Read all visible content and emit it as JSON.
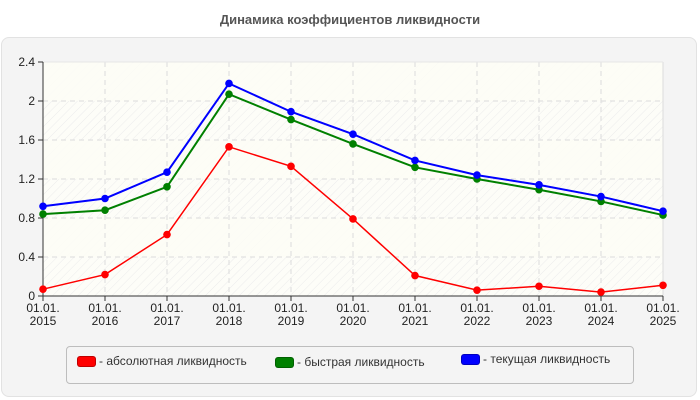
{
  "title": "Динамика коэффициентов ликвидности",
  "chart_data": {
    "type": "line",
    "title": "Динамика коэффициентов ликвидности",
    "xlabel": "",
    "ylabel": "",
    "x": [
      "01.01. 2015",
      "01.01. 2016",
      "01.01. 2017",
      "01.01. 2018",
      "01.01. 2019",
      "01.01. 2020",
      "01.01. 2021",
      "01.01. 2022",
      "01.01. 2023",
      "01.01. 2024",
      "01.01. 2025"
    ],
    "ylim": [
      0,
      2.4
    ],
    "yticks": [
      "0",
      "0.4",
      "0.8",
      "1.2",
      "1.6",
      "2",
      "2.4"
    ],
    "grid": true,
    "legend_position": "bottom",
    "series": [
      {
        "name": "абсолютная ликвидность",
        "color": "#ff0000",
        "values": [
          0.07,
          0.22,
          0.63,
          1.53,
          1.33,
          0.79,
          0.21,
          0.06,
          0.1,
          0.04,
          0.11
        ]
      },
      {
        "name": "быстрая ликвидность",
        "color": "#008000",
        "values": [
          0.84,
          0.88,
          1.12,
          2.07,
          1.81,
          1.56,
          1.32,
          1.2,
          1.09,
          0.97,
          0.83
        ]
      },
      {
        "name": "текущая ликвидность",
        "color": "#0000ff",
        "values": [
          0.92,
          1.0,
          1.27,
          2.18,
          1.89,
          1.66,
          1.39,
          1.24,
          1.14,
          1.02,
          0.87
        ]
      }
    ]
  },
  "legend": {
    "items": [
      {
        "label": "- абсолютная ликвидность",
        "color": "#ff0000"
      },
      {
        "label": "- быстрая ликвидность",
        "color": "#008000"
      },
      {
        "label": "- текущая ликвидность",
        "color": "#0000ff"
      }
    ]
  }
}
